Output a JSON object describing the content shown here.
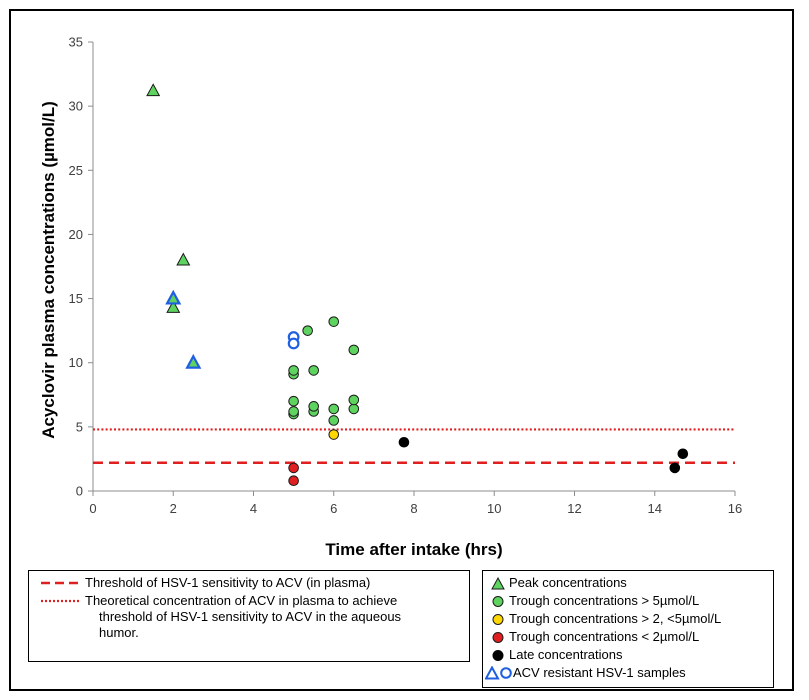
{
  "chart_data": {
    "type": "scatter",
    "title": "",
    "xlabel": "Time after intake (hrs)",
    "ylabel": "Acyclovir plasma concentrations (µmol/L)",
    "xlim": [
      0,
      16
    ],
    "ylim": [
      0,
      35
    ],
    "xticks": [
      "0",
      "2",
      "4",
      "6",
      "8",
      "10",
      "12",
      "14",
      "16"
    ],
    "yticks": [
      "0",
      "5",
      "10",
      "15",
      "20",
      "25",
      "30",
      "35"
    ],
    "grid": false,
    "series": [
      {
        "name": "Peak concentrations",
        "marker": "triangle",
        "fill": "#5fd35f",
        "stroke": "#1a1a1a",
        "points": [
          [
            1.5,
            31.2
          ],
          [
            2.25,
            18.0
          ],
          [
            2.0,
            14.3
          ]
        ]
      },
      {
        "name": "Trough concentrations > 5µmol/L",
        "marker": "circle",
        "fill": "#5fd35f",
        "stroke": "#1a1a1a",
        "points": [
          [
            5.0,
            6.0
          ],
          [
            5.0,
            6.2
          ],
          [
            5.0,
            7.0
          ],
          [
            5.0,
            9.1
          ],
          [
            5.0,
            9.4
          ],
          [
            5.35,
            12.5
          ],
          [
            5.5,
            9.4
          ],
          [
            5.5,
            6.2
          ],
          [
            5.5,
            6.6
          ],
          [
            6.0,
            13.2
          ],
          [
            6.0,
            6.4
          ],
          [
            6.0,
            5.5
          ],
          [
            6.5,
            11.0
          ],
          [
            6.5,
            6.4
          ],
          [
            6.5,
            7.1
          ]
        ]
      },
      {
        "name": "Trough concentrations > 2, <5µmol/L",
        "marker": "circle",
        "fill": "#ffd700",
        "stroke": "#1a1a1a",
        "points": [
          [
            6.0,
            4.4
          ]
        ]
      },
      {
        "name": "Trough concentrations < 2µmol/L",
        "marker": "circle",
        "fill": "#e02020",
        "stroke": "#1a1a1a",
        "points": [
          [
            5.0,
            1.8
          ],
          [
            5.0,
            0.8
          ]
        ]
      },
      {
        "name": "Late concentrations",
        "marker": "circle",
        "fill": "#000000",
        "stroke": "#000000",
        "points": [
          [
            7.75,
            3.8
          ],
          [
            14.5,
            1.8
          ],
          [
            14.7,
            2.9
          ]
        ]
      },
      {
        "name": "ACV resistant HSV-1 samples",
        "marker": "triangle-circle",
        "fill": "#5fd35f",
        "stroke": "#1f5fe0",
        "points": [
          [
            2.0,
            15.0,
            "triangle"
          ],
          [
            2.5,
            10.0,
            "triangle"
          ],
          [
            5.0,
            12.0,
            "circle"
          ],
          [
            5.0,
            11.5,
            "circle"
          ]
        ]
      }
    ],
    "reference_lines": [
      {
        "name": "Threshold of HSV-1 sensitivity to ACV (in plasma)",
        "y": 2.2,
        "style": "dashed",
        "color": "#e02020"
      },
      {
        "name": "Theoretical concentration of ACV in plasma to achieve threshold of HSV-1 sensitivity to ACV in the aqueous humor.",
        "y": 4.8,
        "style": "dotted",
        "color": "#e02020"
      }
    ]
  },
  "legend_left": {
    "items": [
      {
        "style": "dashed",
        "text": "Threshold of HSV-1 sensitivity to ACV (in plasma)"
      },
      {
        "style": "dotted",
        "line1": "Theoretical concentration of ACV in plasma to achieve",
        "line2": "threshold of HSV-1 sensitivity to ACV in the aqueous",
        "line3": "humor."
      }
    ]
  },
  "legend_right": {
    "items": [
      {
        "symbol": "triangle-green",
        "text": "Peak concentrations"
      },
      {
        "symbol": "circle-green",
        "text": "Trough concentrations > 5µmol/L"
      },
      {
        "symbol": "circle-yellow",
        "text": "Trough concentrations > 2, <5µmol/L"
      },
      {
        "symbol": "circle-red",
        "text": "Trough concentrations < 2µmol/L"
      },
      {
        "symbol": "circle-black",
        "text": "Late concentrations"
      },
      {
        "symbol": "resistant",
        "text": "ACV resistant HSV-1 samples"
      }
    ]
  },
  "colors": {
    "green": "#5fd35f",
    "yellow": "#ffd700",
    "red": "#e02020",
    "blue": "#1f5fe0",
    "black": "#000000"
  }
}
